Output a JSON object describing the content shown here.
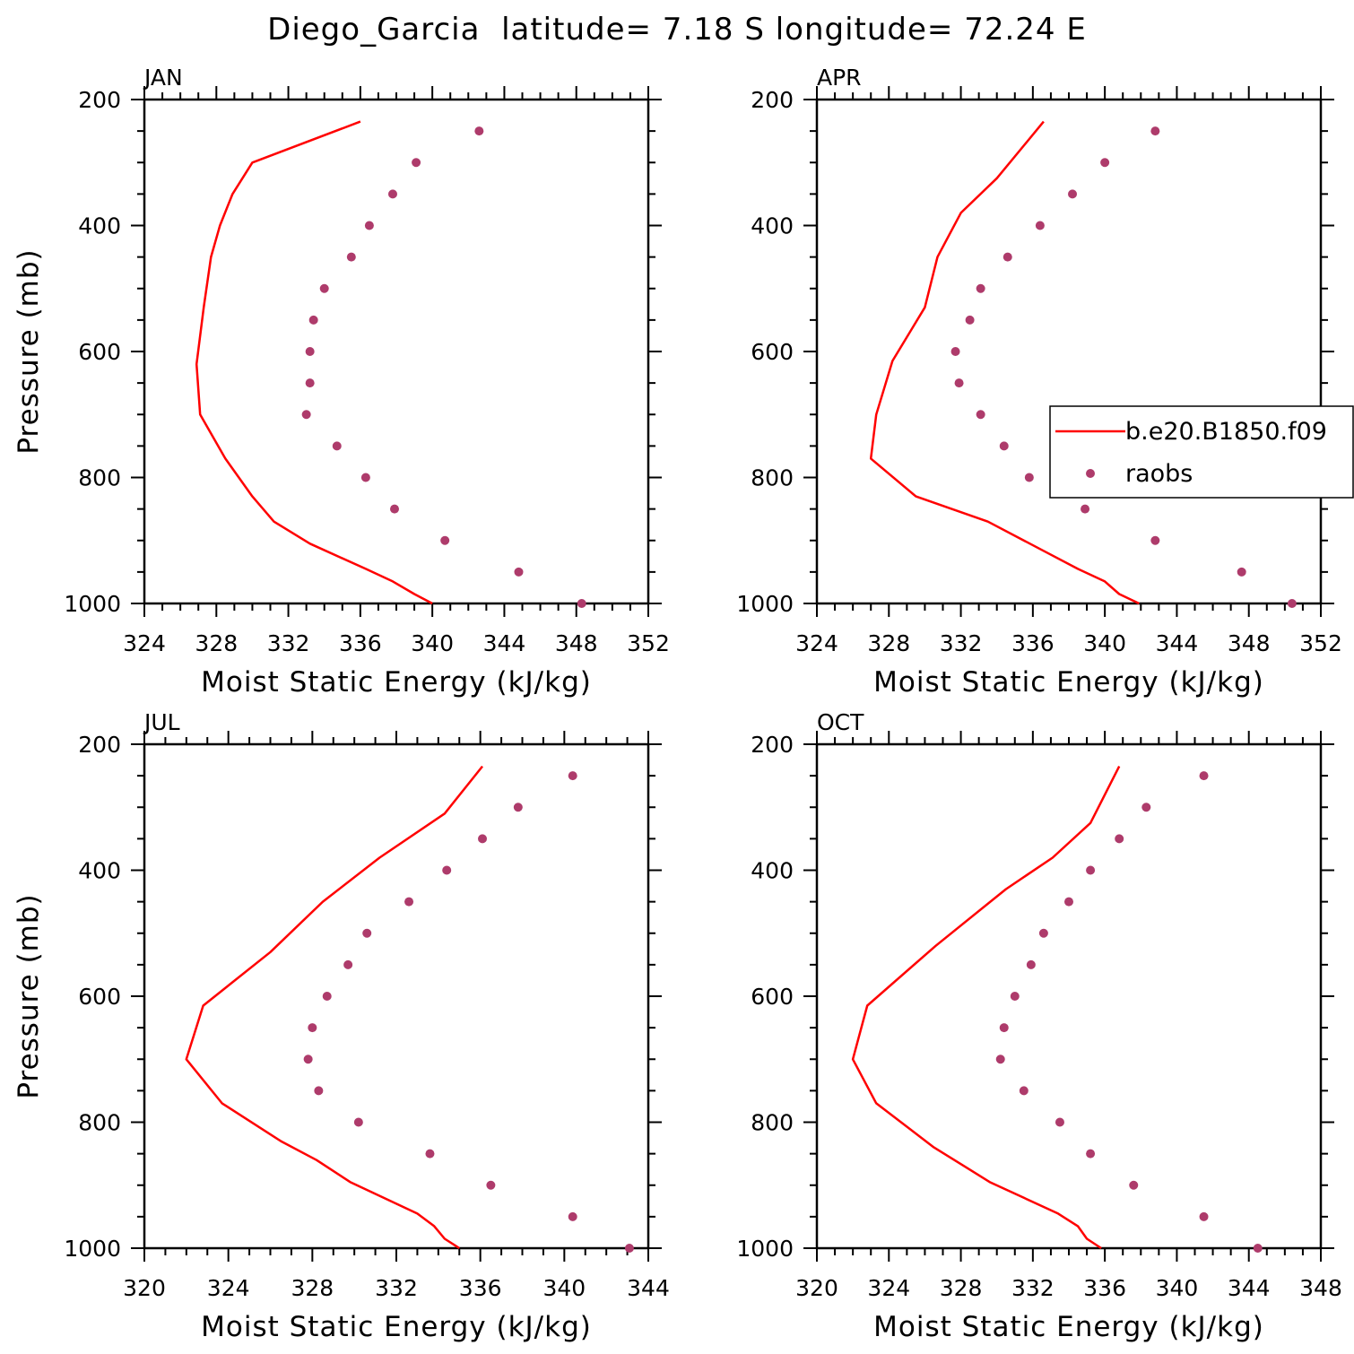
{
  "figure_title": "Diego_Garcia  latitude= 7.18 S longitude= 72.24 E",
  "colors": {
    "model_line": "#ff0000",
    "raobs_marker": "#ae3b6b",
    "axes": "#000000",
    "background": "#ffffff"
  },
  "legend": {
    "entries": [
      {
        "label": "b.e20.B1850.f09",
        "style": "line"
      },
      {
        "label": "raobs",
        "style": "marker"
      }
    ]
  },
  "chart_data": [
    {
      "type": "line",
      "title": "JAN",
      "xlabel": "Moist Static Energy (kJ/kg)",
      "ylabel": "Pressure (mb)",
      "xlim": [
        324,
        352
      ],
      "ylim": [
        1000,
        200
      ],
      "y_inverted": true,
      "xticks": [
        324,
        328,
        332,
        336,
        340,
        344,
        348,
        352
      ],
      "yticks": [
        200,
        400,
        600,
        800,
        1000
      ],
      "series": [
        {
          "name": "b.e20.B1850.f09",
          "kind": "line",
          "x": [
            340.0,
            339.0,
            337.8,
            336.3,
            333.2,
            331.2,
            330.0,
            328.5,
            327.1,
            326.9,
            327.3,
            327.7,
            328.2,
            328.9,
            330.0,
            336.0
          ],
          "y": [
            1000,
            985,
            965,
            945,
            905,
            870,
            830,
            770,
            700,
            620,
            530,
            450,
            400,
            350,
            300,
            235
          ]
        },
        {
          "name": "raobs",
          "kind": "marker",
          "x": [
            348.3,
            344.8,
            340.7,
            337.9,
            336.3,
            334.7,
            333.0,
            333.2,
            333.2,
            333.4,
            334.0,
            335.5,
            336.5,
            337.8,
            339.1,
            342.6
          ],
          "y": [
            1000,
            950,
            900,
            850,
            800,
            750,
            700,
            650,
            600,
            550,
            500,
            450,
            400,
            350,
            300,
            250
          ]
        }
      ]
    },
    {
      "type": "line",
      "title": "APR",
      "xlabel": "Moist Static Energy (kJ/kg)",
      "ylabel": "",
      "xlim": [
        324,
        352
      ],
      "ylim": [
        1000,
        200
      ],
      "y_inverted": true,
      "xticks": [
        324,
        328,
        332,
        336,
        340,
        344,
        348,
        352
      ],
      "yticks": [
        200,
        400,
        600,
        800,
        1000
      ],
      "series": [
        {
          "name": "b.e20.B1850.f09",
          "kind": "line",
          "x": [
            341.9,
            340.8,
            340.0,
            338.5,
            336.5,
            333.5,
            329.5,
            327.0,
            327.3,
            328.2,
            330.0,
            330.7,
            332.0,
            334.0,
            336.6
          ],
          "y": [
            1000,
            985,
            965,
            945,
            915,
            870,
            830,
            770,
            700,
            615,
            530,
            450,
            380,
            325,
            235
          ]
        },
        {
          "name": "raobs",
          "kind": "marker",
          "x": [
            350.4,
            347.6,
            342.8,
            338.9,
            335.8,
            334.4,
            333.1,
            331.9,
            331.7,
            332.5,
            333.1,
            334.6,
            336.4,
            338.2,
            340.0,
            342.8
          ],
          "y": [
            1000,
            950,
            900,
            850,
            800,
            750,
            700,
            650,
            600,
            550,
            500,
            450,
            400,
            350,
            300,
            250
          ]
        }
      ]
    },
    {
      "type": "line",
      "title": "JUL",
      "xlabel": "Moist Static Energy (kJ/kg)",
      "ylabel": "Pressure (mb)",
      "xlim": [
        320,
        344
      ],
      "ylim": [
        1000,
        200
      ],
      "y_inverted": true,
      "xticks": [
        320,
        324,
        328,
        332,
        336,
        340,
        344
      ],
      "yticks": [
        200,
        400,
        600,
        800,
        1000
      ],
      "series": [
        {
          "name": "b.e20.B1850.f09",
          "kind": "line",
          "x": [
            335.0,
            334.3,
            333.8,
            333.0,
            329.8,
            328.2,
            326.5,
            323.7,
            322.0,
            322.8,
            326.0,
            328.5,
            331.2,
            334.3,
            336.1
          ],
          "y": [
            1000,
            985,
            965,
            945,
            895,
            860,
            830,
            770,
            700,
            615,
            530,
            450,
            380,
            310,
            235
          ]
        },
        {
          "name": "raobs",
          "kind": "marker",
          "x": [
            343.1,
            340.4,
            336.5,
            333.6,
            330.2,
            328.3,
            327.8,
            328.0,
            328.7,
            329.7,
            330.6,
            332.6,
            334.4,
            336.1,
            337.8,
            340.4
          ],
          "y": [
            1000,
            950,
            900,
            850,
            800,
            750,
            700,
            650,
            600,
            550,
            500,
            450,
            400,
            350,
            300,
            250
          ]
        }
      ]
    },
    {
      "type": "line",
      "title": "OCT",
      "xlabel": "Moist Static Energy (kJ/kg)",
      "ylabel": "",
      "xlim": [
        320,
        348
      ],
      "ylim": [
        1000,
        200
      ],
      "y_inverted": true,
      "xticks": [
        320,
        324,
        328,
        332,
        336,
        340,
        344,
        348
      ],
      "yticks": [
        200,
        400,
        600,
        800,
        1000
      ],
      "series": [
        {
          "name": "b.e20.B1850.f09",
          "kind": "line",
          "x": [
            335.8,
            335.0,
            334.5,
            333.4,
            329.6,
            328.2,
            326.5,
            323.3,
            322.0,
            322.8,
            326.6,
            330.5,
            333.1,
            335.2,
            336.8
          ],
          "y": [
            1000,
            985,
            965,
            945,
            895,
            870,
            840,
            770,
            700,
            615,
            520,
            430,
            380,
            325,
            235
          ]
        },
        {
          "name": "raobs",
          "kind": "marker",
          "x": [
            344.5,
            341.5,
            337.6,
            335.2,
            333.5,
            331.5,
            330.2,
            330.4,
            331.0,
            331.9,
            332.6,
            334.0,
            335.2,
            336.8,
            338.3,
            341.5
          ],
          "y": [
            1000,
            950,
            900,
            850,
            800,
            750,
            700,
            650,
            600,
            550,
            500,
            450,
            400,
            350,
            300,
            250
          ]
        }
      ]
    }
  ]
}
